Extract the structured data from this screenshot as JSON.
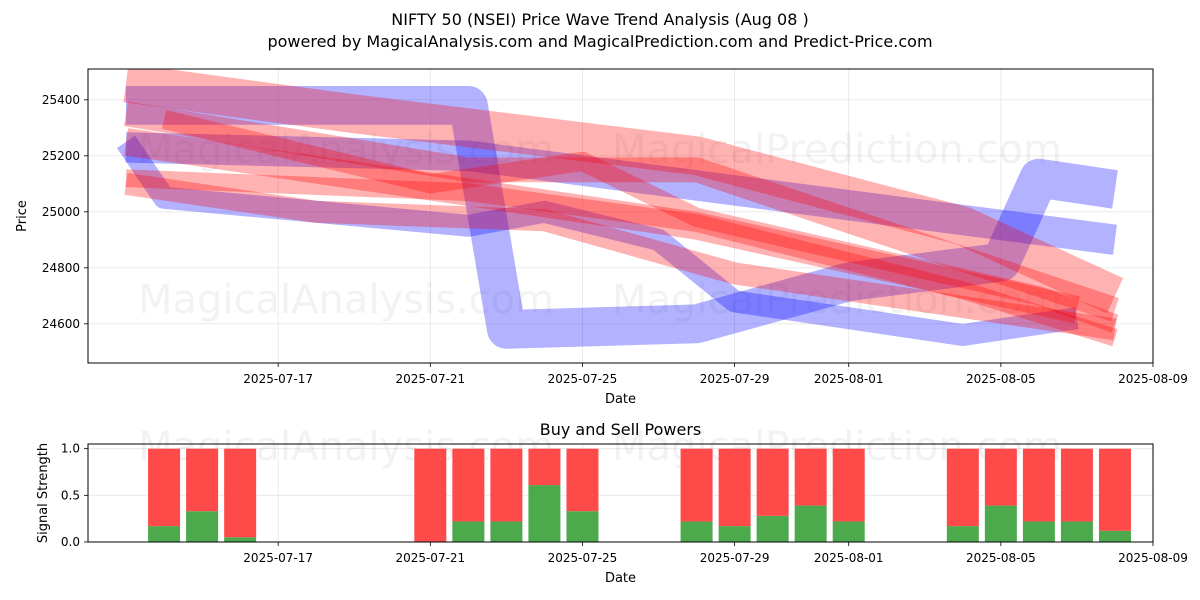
{
  "header": {
    "title": "NIFTY 50 (NSEI) Price Wave Trend Analysis (Aug 08 )",
    "subtitle": "powered by MagicalAnalysis.com and MagicalPrediction.com and Predict-Price.com"
  },
  "watermarks": [
    "MagicalAnalysis.com",
    "MagicalPrediction.com"
  ],
  "colors": {
    "blue": "#0000ff",
    "red": "#ff0000",
    "buy": "#4caa4c",
    "sell": "#ff4a4a"
  },
  "chart_data": [
    {
      "type": "area",
      "title": "",
      "xlabel": "Date",
      "ylabel": "Price",
      "xlim": [
        "2025-07-12",
        "2025-08-09"
      ],
      "ylim": [
        24460,
        25510
      ],
      "x_ticks": [
        "2025-07-17",
        "2025-07-21",
        "2025-07-25",
        "2025-07-29",
        "2025-08-01",
        "2025-08-05",
        "2025-08-09"
      ],
      "y_ticks": [
        24600,
        24800,
        25000,
        25200,
        25400
      ],
      "grid": true,
      "series": [
        {
          "color": "blue",
          "points": [
            [
              "2025-07-13",
              25380
            ],
            [
              "2025-07-22",
              25380
            ],
            [
              "2025-07-23",
              24580
            ],
            [
              "2025-07-28",
              24600
            ],
            [
              "2025-08-01",
              24750
            ],
            [
              "2025-08-05",
              24820
            ],
            [
              "2025-08-06",
              25120
            ],
            [
              "2025-08-08",
              25080
            ]
          ],
          "width": 110
        },
        {
          "color": "blue",
          "points": [
            [
              "2025-07-13",
              25230
            ],
            [
              "2025-07-22",
              25200
            ],
            [
              "2025-08-08",
              24900
            ]
          ],
          "width": 80
        },
        {
          "color": "blue",
          "points": [
            [
              "2025-07-13",
              25250
            ],
            [
              "2025-07-14",
              25050
            ],
            [
              "2025-07-22",
              24950
            ],
            [
              "2025-07-24",
              25000
            ],
            [
              "2025-07-27",
              24900
            ],
            [
              "2025-07-29",
              24680
            ],
            [
              "2025-08-04",
              24560
            ],
            [
              "2025-08-07",
              24620
            ]
          ],
          "width": 50
        },
        {
          "color": "red",
          "points": [
            [
              "2025-07-13",
              25460
            ],
            [
              "2025-07-19",
              25350
            ],
            [
              "2025-07-28",
              25200
            ],
            [
              "2025-08-04",
              24950
            ],
            [
              "2025-08-08",
              24700
            ]
          ],
          "width": 110
        },
        {
          "color": "red",
          "points": [
            [
              "2025-07-13",
              25350
            ],
            [
              "2025-07-22",
              25150
            ],
            [
              "2025-07-28",
              25150
            ],
            [
              "2025-08-08",
              24650
            ]
          ],
          "width": 60
        },
        {
          "color": "red",
          "points": [
            [
              "2025-07-13",
              25250
            ],
            [
              "2025-07-23",
              25050
            ],
            [
              "2025-07-28",
              24950
            ],
            [
              "2025-08-07",
              24650
            ]
          ],
          "width": 70
        },
        {
          "color": "red",
          "points": [
            [
              "2025-07-13",
              25100
            ],
            [
              "2025-07-18",
              25000
            ],
            [
              "2025-07-24",
              24970
            ],
            [
              "2025-07-29",
              24780
            ],
            [
              "2025-08-08",
              24580
            ]
          ],
          "width": 50
        },
        {
          "color": "red",
          "points": [
            [
              "2025-07-14",
              25330
            ],
            [
              "2025-07-21",
              25100
            ],
            [
              "2025-07-25",
              25180
            ],
            [
              "2025-07-28",
              24980
            ],
            [
              "2025-08-06",
              24700
            ],
            [
              "2025-08-08",
              24600
            ]
          ],
          "width": 40
        },
        {
          "color": "red",
          "points": [
            [
              "2025-07-13",
              25120
            ],
            [
              "2025-07-22",
              25070
            ],
            [
              "2025-07-28",
              24960
            ],
            [
              "2025-08-04",
              24720
            ],
            [
              "2025-08-08",
              24550
            ]
          ],
          "width": 35
        }
      ]
    },
    {
      "type": "bar",
      "title": "Buy and Sell Powers",
      "xlabel": "Date",
      "ylabel": "Signal Strength",
      "xlim": [
        "2025-07-12",
        "2025-08-09"
      ],
      "ylim": [
        0,
        1.05
      ],
      "x_ticks": [
        "2025-07-17",
        "2025-07-21",
        "2025-07-25",
        "2025-07-29",
        "2025-08-01",
        "2025-08-05",
        "2025-08-09"
      ],
      "y_ticks": [
        0.0,
        0.5,
        1.0
      ],
      "grid": true,
      "categories": [
        "2025-07-14",
        "2025-07-15",
        "2025-07-16",
        "2025-07-21",
        "2025-07-22",
        "2025-07-23",
        "2025-07-24",
        "2025-07-25",
        "2025-07-28",
        "2025-07-29",
        "2025-07-30",
        "2025-07-31",
        "2025-08-01",
        "2025-08-04",
        "2025-08-05",
        "2025-08-06",
        "2025-08-07",
        "2025-08-08"
      ],
      "series": [
        {
          "name": "Buy",
          "color": "buy",
          "values": [
            0.17,
            0.33,
            0.05,
            0.0,
            0.22,
            0.22,
            0.61,
            0.33,
            0.22,
            0.17,
            0.28,
            0.39,
            0.22,
            0.17,
            0.39,
            0.22,
            0.22,
            0.12
          ]
        },
        {
          "name": "Sell",
          "color": "sell",
          "values": [
            0.83,
            0.67,
            0.95,
            1.0,
            0.78,
            0.78,
            0.39,
            0.67,
            0.78,
            0.83,
            0.72,
            0.61,
            0.78,
            0.83,
            0.61,
            0.78,
            0.78,
            0.88
          ]
        }
      ]
    }
  ]
}
